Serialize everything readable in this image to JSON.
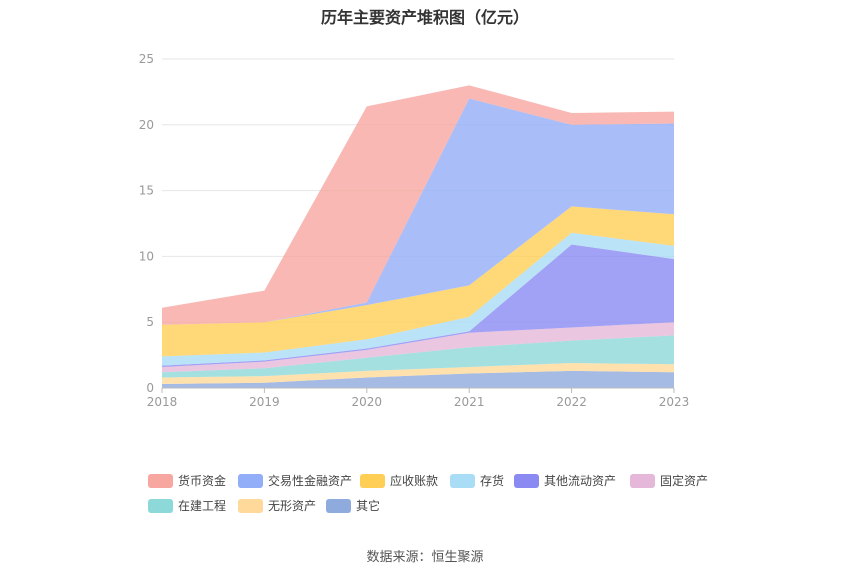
{
  "chart_data": {
    "type": "area",
    "title": "历年主要资产堆积图（亿元）",
    "xlabel": "",
    "ylabel": "",
    "categories": [
      "2018",
      "2019",
      "2020",
      "2021",
      "2022",
      "2023"
    ],
    "ylim": [
      0,
      25
    ],
    "yticks": [
      0,
      5,
      10,
      15,
      20,
      25
    ],
    "stacked": true,
    "grid": true,
    "legend_position": "bottom",
    "series": [
      {
        "name": "其它",
        "color": "#8faadc",
        "values": [
          0.3,
          0.4,
          0.8,
          1.1,
          1.3,
          1.2
        ]
      },
      {
        "name": "无形资产",
        "color": "#ffd99a",
        "values": [
          0.5,
          0.5,
          0.5,
          0.5,
          0.6,
          0.6
        ]
      },
      {
        "name": "在建工程",
        "color": "#8dd8d8",
        "values": [
          0.4,
          0.6,
          1.0,
          1.5,
          1.7,
          2.2
        ]
      },
      {
        "name": "固定资产",
        "color": "#e5b8d9",
        "values": [
          0.4,
          0.5,
          0.6,
          1.1,
          1.0,
          1.0
        ]
      },
      {
        "name": "其他流动资产",
        "color": "#8a8af2",
        "values": [
          0.1,
          0.1,
          0.1,
          0.1,
          6.3,
          4.8
        ]
      },
      {
        "name": "存货",
        "color": "#a9dcf5",
        "values": [
          0.7,
          0.6,
          0.7,
          1.1,
          0.9,
          1.0
        ]
      },
      {
        "name": "应收账款",
        "color": "#ffce55",
        "values": [
          2.4,
          2.3,
          2.6,
          2.4,
          2.0,
          2.4
        ]
      },
      {
        "name": "交易性金融资产",
        "color": "#93aef8",
        "values": [
          0.0,
          0.0,
          0.2,
          14.2,
          6.2,
          6.9
        ]
      },
      {
        "name": "货币资金",
        "color": "#f8a6a0",
        "values": [
          1.3,
          2.4,
          14.9,
          1.0,
          0.9,
          0.9
        ]
      }
    ]
  },
  "legend_order": [
    "货币资金",
    "交易性金融资产",
    "应收账款",
    "存货",
    "其他流动资产",
    "固定资产",
    "在建工程",
    "无形资产",
    "其它"
  ],
  "source": "数据来源：恒生聚源"
}
